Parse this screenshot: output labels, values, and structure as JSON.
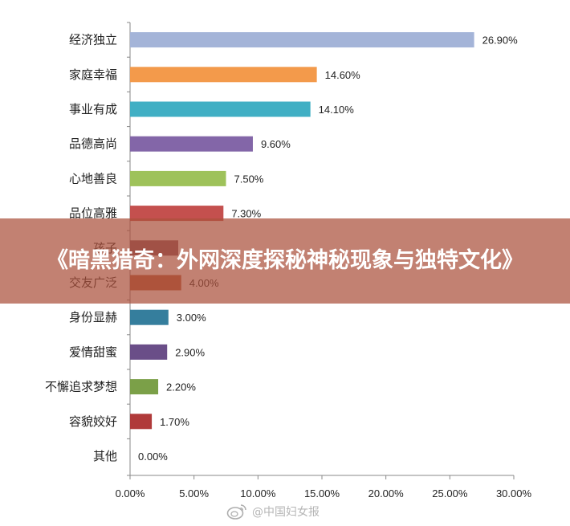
{
  "chart_data": {
    "type": "bar",
    "orientation": "horizontal",
    "categories": [
      "经济独立",
      "家庭幸福",
      "事业有成",
      "品德高尚",
      "心地善良",
      "品位高雅",
      "孩子",
      "交友广泛",
      "身份显赫",
      "爱情甜蜜",
      "不懈追求梦想",
      "容貌姣好",
      "其他"
    ],
    "values": [
      26.9,
      14.6,
      14.1,
      9.6,
      7.5,
      7.3,
      null,
      4.0,
      3.0,
      2.9,
      2.2,
      1.7,
      0.0
    ],
    "value_labels": [
      "26.90%",
      "14.60%",
      "14.10%",
      "9.60%",
      "7.50%",
      "7.30%",
      "",
      "4.00%",
      "3.00%",
      "2.90%",
      "2.20%",
      "1.70%",
      "0.00%"
    ],
    "colors": [
      "#A4B4D8",
      "#F39A4B",
      "#40AFC4",
      "#8366A8",
      "#9EC25A",
      "#C4504E",
      "#8A5560",
      "#B65A3C",
      "#357E9D",
      "#6A4E88",
      "#7BA048",
      "#B03A3A",
      "#cccccc"
    ],
    "x_ticks": [
      "0.00%",
      "5.00%",
      "10.00%",
      "15.00%",
      "20.00%",
      "25.00%",
      "30.00%"
    ],
    "xlim": [
      0,
      30
    ],
    "grid": false,
    "legend": "none"
  },
  "banner": {
    "text": "《暗黑猎奇：外网深度探秘神秘现象与独特文化》"
  },
  "watermark": {
    "text": "@中国妇女报",
    "icon": "weibo-icon"
  }
}
